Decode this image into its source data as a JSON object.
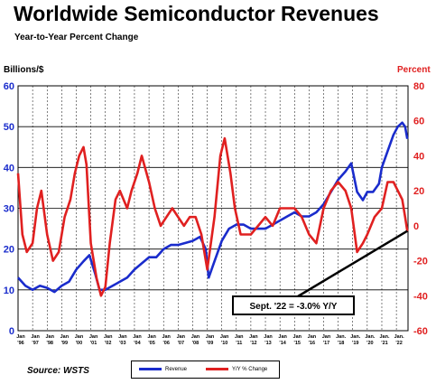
{
  "chart_data": {
    "type": "line",
    "title": "Worldwide Semiconductor Revenues",
    "subtitle": "Year-to-Year Percent Change",
    "ylabel_left": "Billions/$",
    "ylabel_right": "Percent",
    "ylim_left": [
      0,
      60
    ],
    "ylim_right": [
      -60,
      80
    ],
    "yticks_left": [
      "0",
      "10",
      "20",
      "30",
      "40",
      "50",
      "60"
    ],
    "yticks_right": [
      "-60",
      "-40",
      "-20",
      "0",
      "20",
      "40",
      "60",
      "80"
    ],
    "x_range": [
      1996,
      2022.8
    ],
    "xticks": [
      {
        "top": "Jan",
        "bottom": "'96"
      },
      {
        "top": "Jan",
        "bottom": "'97"
      },
      {
        "top": "Jan",
        "bottom": "'98"
      },
      {
        "top": "Jan",
        "bottom": "'99"
      },
      {
        "top": "Jan",
        "bottom": "'00"
      },
      {
        "top": "Jan",
        "bottom": "'01"
      },
      {
        "top": "Jan",
        "bottom": "'02"
      },
      {
        "top": "Jan",
        "bottom": "'03"
      },
      {
        "top": "Jan",
        "bottom": "'04"
      },
      {
        "top": "Jan",
        "bottom": "'05"
      },
      {
        "top": "Jan",
        "bottom": "'06"
      },
      {
        "top": "Jan",
        "bottom": "'07"
      },
      {
        "top": "Jan",
        "bottom": "'08"
      },
      {
        "top": "Jan",
        "bottom": "'09"
      },
      {
        "top": "Jan",
        "bottom": "'10"
      },
      {
        "top": "Jan",
        "bottom": "'11"
      },
      {
        "top": "Jan",
        "bottom": "'12"
      },
      {
        "top": "Jan",
        "bottom": "'13"
      },
      {
        "top": "Jan",
        "bottom": "'14"
      },
      {
        "top": "Jan",
        "bottom": "'15"
      },
      {
        "top": "Jan",
        "bottom": "'16"
      },
      {
        "top": "Jan",
        "bottom": "'17"
      },
      {
        "top": "Jan.",
        "bottom": "'18"
      },
      {
        "top": "Jan.",
        "bottom": "'19"
      },
      {
        "top": "Jan.",
        "bottom": "'20"
      },
      {
        "top": "Jan.",
        "bottom": "'21"
      },
      {
        "top": "Jan.",
        "bottom": "'22"
      }
    ],
    "grid": true,
    "legend_position": "bottom",
    "series": [
      {
        "name": "Revenue",
        "axis": "left",
        "color": "#1a2ccc",
        "x": [
          1996.0,
          1996.5,
          1997.0,
          1997.5,
          1998.0,
          1998.5,
          1999.0,
          1999.5,
          2000.0,
          2000.5,
          2000.9,
          2001.3,
          2001.6,
          2002.0,
          2002.5,
          2003.0,
          2003.5,
          2004.0,
          2004.5,
          2005.0,
          2005.5,
          2006.0,
          2006.5,
          2007.0,
          2007.5,
          2008.0,
          2008.5,
          2008.9,
          2009.1,
          2009.5,
          2010.0,
          2010.5,
          2011.0,
          2011.5,
          2012.0,
          2012.5,
          2013.0,
          2013.5,
          2014.0,
          2014.5,
          2015.0,
          2015.5,
          2016.0,
          2016.5,
          2017.0,
          2017.5,
          2018.0,
          2018.5,
          2018.9,
          2019.3,
          2019.7,
          2020.0,
          2020.4,
          2020.8,
          2021.0,
          2021.4,
          2021.8,
          2022.1,
          2022.4,
          2022.6,
          2022.75
        ],
        "values": [
          13,
          11,
          10,
          11,
          10.5,
          9.5,
          11,
          12,
          15,
          17,
          18.5,
          14,
          10,
          10,
          11,
          12,
          13,
          15,
          16.5,
          18,
          18,
          20,
          21,
          21,
          21.5,
          22,
          23,
          20,
          13,
          17,
          22,
          25,
          26,
          26,
          25,
          25,
          25,
          26,
          27,
          28,
          29,
          28,
          28,
          29,
          31,
          34,
          37,
          39,
          41,
          34,
          32,
          34,
          34,
          36,
          40,
          44,
          48,
          50,
          51,
          50,
          47
        ]
      },
      {
        "name": "Y/Y % Change",
        "axis": "right",
        "color": "#e02020",
        "x": [
          1996.0,
          1996.3,
          1996.6,
          1997.0,
          1997.3,
          1997.6,
          1998.0,
          1998.4,
          1998.8,
          1999.2,
          1999.6,
          1999.9,
          2000.2,
          2000.5,
          2000.7,
          2001.0,
          2001.4,
          2001.7,
          2002.0,
          2002.3,
          2002.7,
          2003.0,
          2003.5,
          2003.8,
          2004.2,
          2004.5,
          2005.0,
          2005.4,
          2005.8,
          2006.2,
          2006.6,
          2007.0,
          2007.4,
          2007.8,
          2008.2,
          2008.6,
          2009.0,
          2009.5,
          2009.9,
          2010.2,
          2010.6,
          2010.9,
          2011.3,
          2011.7,
          2012.0,
          2012.5,
          2013.0,
          2013.5,
          2014.0,
          2014.5,
          2015.0,
          2015.5,
          2016.0,
          2016.5,
          2017.0,
          2017.5,
          2018.0,
          2018.5,
          2018.9,
          2019.3,
          2019.7,
          2020.0,
          2020.5,
          2021.0,
          2021.4,
          2021.8,
          2022.1,
          2022.4,
          2022.6,
          2022.75
        ],
        "values": [
          30,
          -5,
          -15,
          -10,
          10,
          20,
          -5,
          -20,
          -15,
          5,
          15,
          30,
          40,
          45,
          35,
          -10,
          -30,
          -40,
          -35,
          -10,
          15,
          20,
          10,
          20,
          30,
          40,
          25,
          10,
          0,
          5,
          10,
          5,
          0,
          5,
          5,
          -5,
          -25,
          5,
          40,
          50,
          30,
          10,
          -5,
          -5,
          -5,
          0,
          5,
          0,
          10,
          10,
          10,
          5,
          -5,
          -10,
          10,
          20,
          25,
          20,
          10,
          -15,
          -10,
          -5,
          5,
          10,
          25,
          25,
          20,
          15,
          5,
          -3
        ]
      }
    ],
    "annotation": "Sept. '22 = -3.0% Y/Y",
    "source": "Source: WSTS"
  }
}
